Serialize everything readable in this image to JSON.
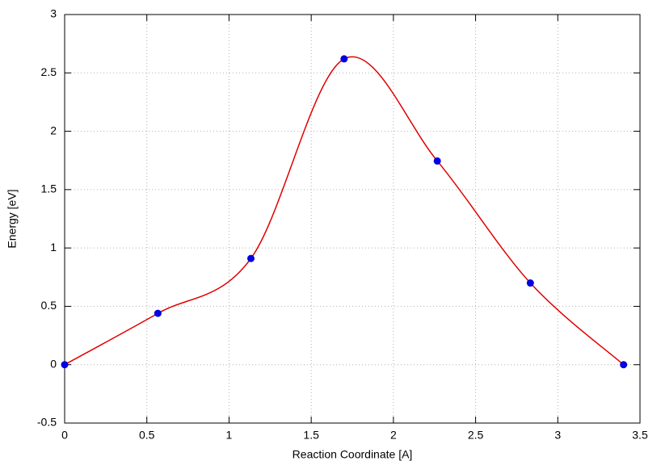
{
  "chart_data": {
    "type": "line",
    "xlabel": "Reaction Coordinate [A]",
    "ylabel": "Energy [eV]",
    "x": [
      0,
      0.567,
      1.133,
      1.7,
      2.267,
      2.833,
      3.4
    ],
    "series": [
      {
        "values": [
          0,
          0.44,
          0.91,
          2.62,
          1.745,
          0.7,
          0
        ],
        "color": "#e00000",
        "marker_color": "#0000e0"
      }
    ],
    "xlim": [
      0,
      3.5
    ],
    "xticks": [
      0,
      0.5,
      1,
      1.5,
      2,
      2.5,
      3,
      3.5
    ],
    "ylim": [
      -0.5,
      3
    ],
    "yticks": [
      -0.5,
      0,
      0.5,
      1,
      1.5,
      2,
      2.5,
      3
    ],
    "grid": true
  }
}
